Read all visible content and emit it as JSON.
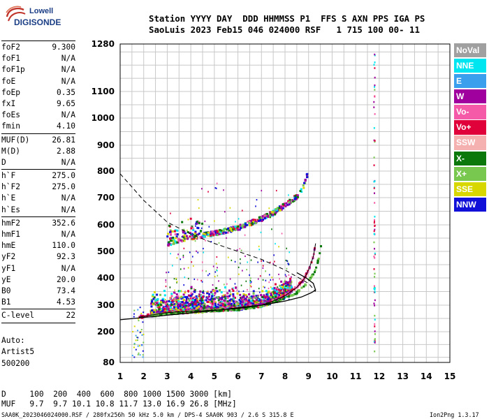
{
  "logo": {
    "line1": "Lowell",
    "line2": "DIGISONDE"
  },
  "header": {
    "line1": "Station YYYY DAY  DDD HHMMSS P1  FFS S AXN PPS IGA PS",
    "line2": "SaoLuis 2023 Feb15 046 024000 RSF   1 715 100 00- 11"
  },
  "params": [
    {
      "k": "foF2",
      "v": "9.300"
    },
    {
      "k": "foF1",
      "v": "N/A"
    },
    {
      "k": "foF1p",
      "v": "N/A"
    },
    {
      "k": "foE",
      "v": "N/A"
    },
    {
      "k": "foEp",
      "v": "0.35"
    },
    {
      "k": "fxI",
      "v": "9.65"
    },
    {
      "k": "foEs",
      "v": "N/A"
    },
    {
      "k": "fmin",
      "v": "4.10"
    }
  ],
  "params2": [
    {
      "k": "MUF(D)",
      "v": "26.81"
    },
    {
      "k": "M(D)",
      "v": "2.88"
    },
    {
      "k": "D",
      "v": "N/A"
    }
  ],
  "params3": [
    {
      "k": "h`F",
      "v": "275.0"
    },
    {
      "k": "h`F2",
      "v": "275.0"
    },
    {
      "k": "h`E",
      "v": "N/A"
    },
    {
      "k": "h`Es",
      "v": "N/A"
    }
  ],
  "params4": [
    {
      "k": "hmF2",
      "v": "352.6"
    },
    {
      "k": "hmF1",
      "v": "N/A"
    },
    {
      "k": "hmE",
      "v": "110.0"
    },
    {
      "k": "yF2",
      "v": "92.3"
    },
    {
      "k": "yF1",
      "v": "N/A"
    },
    {
      "k": "yE",
      "v": "20.0"
    },
    {
      "k": "B0",
      "v": "73.4"
    },
    {
      "k": "B1",
      "v": "4.53"
    }
  ],
  "params5": [
    {
      "k": "C-level",
      "v": "22"
    }
  ],
  "auto": {
    "line1": "Auto:",
    "line2": "Artist5",
    "line3": "500200"
  },
  "legend": [
    {
      "label": "NoVal",
      "color": "#a0a0a0"
    },
    {
      "label": "NNE",
      "color": "#00e6f0"
    },
    {
      "label": "E",
      "color": "#3aa0ee"
    },
    {
      "label": "W",
      "color": "#a0009e"
    },
    {
      "label": "Vo-",
      "color": "#f55aa8"
    },
    {
      "label": "Vo+",
      "color": "#e0003a"
    },
    {
      "label": "SSW",
      "color": "#f5b0b0"
    },
    {
      "label": "X-",
      "color": "#0a780a"
    },
    {
      "label": "X+",
      "color": "#78c850"
    },
    {
      "label": "SSE",
      "color": "#d8d800"
    },
    {
      "label": "NNW",
      "color": "#1010d8"
    }
  ],
  "footer": {
    "line1": "D     100  200  400  600  800 1000 1500 3000 [km]",
    "line2": "MUF   9.7  9.7 10.1 10.8 11.7 13.0 16.9 26.8 [MHz]",
    "line3": "SAA0K_2023046024000.RSF / 280fx256h 50 kHz 5.0 km / DPS-4 SAA0K 903 / 2.6 S 315.8 E",
    "line4": "Ion2Png 1.3.17"
  },
  "chart_data": {
    "type": "scatter",
    "xlim": [
      1,
      15
    ],
    "ylim": [
      80,
      1280
    ],
    "x_ticks": [
      1,
      2,
      3,
      4,
      5,
      6,
      7,
      8,
      9,
      10,
      11,
      12,
      13,
      14,
      15
    ],
    "y_ticks": [
      80,
      200,
      300,
      400,
      500,
      600,
      700,
      800,
      900,
      1000,
      1100,
      1280
    ],
    "grid": true,
    "traces": {
      "o_F2_trace": {
        "x": [
          1.8,
          2.3,
          3.0,
          4.0,
          5.0,
          6.0,
          7.0,
          7.5,
          8.0,
          8.5,
          8.8,
          9.0,
          9.2,
          9.3
        ],
        "y": [
          255,
          262,
          272,
          277,
          281,
          287,
          300,
          315,
          335,
          365,
          395,
          430,
          480,
          530
        ]
      },
      "x_F2_trace": {
        "x": [
          2.3,
          3.0,
          4.0,
          5.0,
          6.0,
          7.0,
          7.8,
          8.5,
          9.0,
          9.3,
          9.45,
          9.55
        ],
        "y": [
          260,
          268,
          275,
          280,
          285,
          297,
          320,
          345,
          385,
          430,
          480,
          530
        ]
      },
      "multihop_trace": {
        "x": [
          3.0,
          3.5,
          4.0,
          5.0,
          6.0,
          7.0,
          7.5,
          8.0,
          8.5,
          8.8,
          9.0
        ],
        "y": [
          525,
          540,
          550,
          565,
          585,
          620,
          640,
          670,
          700,
          740,
          800
        ]
      },
      "vertical_band": {
        "x": [
          11.8,
          11.8,
          11.8,
          11.8,
          11.8,
          11.8,
          11.8,
          11.8
        ],
        "y": [
          1270,
          1030,
          930,
          780,
          560,
          410,
          300,
          200
        ]
      }
    },
    "profile_curve": {
      "x": [
        1.0,
        3.0,
        5.0,
        7.0,
        8.0,
        8.7,
        9.1,
        9.3,
        9.2,
        8.9,
        8.5
      ],
      "y": [
        245,
        262,
        280,
        300,
        315,
        330,
        345,
        355,
        380,
        400,
        420
      ]
    },
    "dashed_curve": {
      "x": [
        1.0,
        1.5,
        2.0,
        2.5,
        3.0,
        4.0,
        5.0,
        6.0,
        7.0,
        8.0,
        9.0,
        9.3
      ],
      "y": [
        790,
        740,
        690,
        650,
        610,
        565,
        530,
        500,
        470,
        430,
        380,
        350
      ]
    }
  }
}
